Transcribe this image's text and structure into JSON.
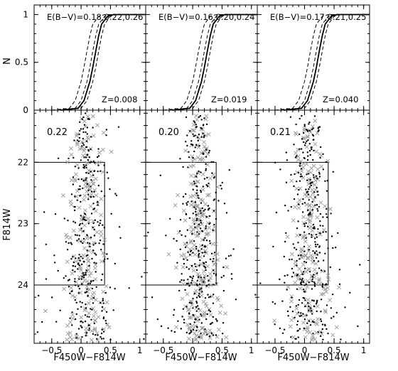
{
  "chart_data": [
    {
      "type": "line",
      "panel": "cumulative-1",
      "ylabel": "N",
      "xlim": [
        -0.8,
        1.1
      ],
      "ylim": [
        0,
        1.1
      ],
      "yticks": [
        0,
        0.5,
        1
      ],
      "ytick_labels": [
        "0",
        "0.5",
        "1"
      ],
      "annotations": [
        "E(B−V)=0.18,0.22,0.26",
        "Z=0.008"
      ],
      "series": [
        {
          "style": "dashed",
          "x": [
            -0.5,
            -0.2,
            -0.1,
            0.0,
            0.05,
            0.1,
            0.15,
            0.2,
            0.3,
            0.4,
            1.1
          ],
          "values": [
            0,
            0.02,
            0.1,
            0.3,
            0.45,
            0.62,
            0.78,
            0.9,
            0.98,
            1.0,
            1.0
          ]
        },
        {
          "style": "dashed",
          "x": [
            -0.4,
            -0.1,
            0.0,
            0.1,
            0.15,
            0.2,
            0.25,
            0.3,
            0.4,
            0.5,
            1.1
          ],
          "values": [
            0,
            0.02,
            0.1,
            0.3,
            0.45,
            0.62,
            0.78,
            0.9,
            0.98,
            1.0,
            1.0
          ]
        },
        {
          "style": "dashed",
          "x": [
            -0.3,
            0.0,
            0.1,
            0.2,
            0.25,
            0.3,
            0.35,
            0.4,
            0.5,
            0.6,
            1.1
          ],
          "values": [
            0,
            0.02,
            0.1,
            0.3,
            0.45,
            0.62,
            0.78,
            0.9,
            0.98,
            1.0,
            1.0
          ]
        },
        {
          "style": "solid",
          "x": [
            -0.35,
            -0.05,
            0.05,
            0.15,
            0.2,
            0.25,
            0.3,
            0.35,
            0.45,
            0.55,
            1.1
          ],
          "values": [
            0,
            0.02,
            0.1,
            0.3,
            0.45,
            0.62,
            0.78,
            0.9,
            0.98,
            1.0,
            1.0
          ]
        }
      ]
    },
    {
      "type": "line",
      "panel": "cumulative-2",
      "xlim": [
        -0.8,
        1.1
      ],
      "ylim": [
        0,
        1.1
      ],
      "annotations": [
        "E(B−V)=0.16,0.20,0.24",
        "Z=0.019"
      ],
      "series": [
        {
          "style": "dashed",
          "x": [
            -0.5,
            -0.2,
            -0.1,
            0.0,
            0.05,
            0.1,
            0.15,
            0.2,
            0.3,
            0.4,
            1.1
          ],
          "values": [
            0,
            0.02,
            0.1,
            0.3,
            0.45,
            0.62,
            0.78,
            0.9,
            0.98,
            1.0,
            1.0
          ]
        },
        {
          "style": "dashed",
          "x": [
            -0.4,
            -0.1,
            0.0,
            0.1,
            0.15,
            0.2,
            0.25,
            0.3,
            0.4,
            0.5,
            1.1
          ],
          "values": [
            0,
            0.02,
            0.1,
            0.3,
            0.45,
            0.62,
            0.78,
            0.9,
            0.98,
            1.0,
            1.0
          ]
        },
        {
          "style": "dashed",
          "x": [
            -0.3,
            0.0,
            0.1,
            0.2,
            0.25,
            0.3,
            0.35,
            0.4,
            0.5,
            0.6,
            1.1
          ],
          "values": [
            0,
            0.02,
            0.1,
            0.3,
            0.45,
            0.62,
            0.78,
            0.9,
            0.98,
            1.0,
            1.0
          ]
        },
        {
          "style": "solid",
          "x": [
            -0.35,
            -0.05,
            0.05,
            0.15,
            0.2,
            0.25,
            0.3,
            0.35,
            0.45,
            0.55,
            1.1
          ],
          "values": [
            0,
            0.02,
            0.1,
            0.3,
            0.45,
            0.62,
            0.78,
            0.9,
            0.98,
            1.0,
            1.0
          ]
        }
      ]
    },
    {
      "type": "line",
      "panel": "cumulative-3",
      "xlim": [
        -0.8,
        1.1
      ],
      "ylim": [
        0,
        1.1
      ],
      "annotations": [
        "E(B−V)=0.17,0.21,0.25",
        "Z=0.040"
      ],
      "series": [
        {
          "style": "dashed",
          "x": [
            -0.5,
            -0.2,
            -0.1,
            0.0,
            0.05,
            0.1,
            0.15,
            0.2,
            0.3,
            0.4,
            1.1
          ],
          "values": [
            0,
            0.02,
            0.1,
            0.3,
            0.45,
            0.62,
            0.78,
            0.9,
            0.98,
            1.0,
            1.0
          ]
        },
        {
          "style": "dashed",
          "x": [
            -0.4,
            -0.1,
            0.0,
            0.1,
            0.15,
            0.2,
            0.25,
            0.3,
            0.4,
            0.5,
            1.1
          ],
          "values": [
            0,
            0.02,
            0.1,
            0.3,
            0.45,
            0.62,
            0.78,
            0.9,
            0.98,
            1.0,
            1.0
          ]
        },
        {
          "style": "dashed",
          "x": [
            -0.3,
            0.0,
            0.1,
            0.2,
            0.25,
            0.3,
            0.35,
            0.4,
            0.5,
            0.6,
            1.1
          ],
          "values": [
            0,
            0.02,
            0.1,
            0.3,
            0.45,
            0.62,
            0.78,
            0.9,
            0.98,
            1.0,
            1.0
          ]
        },
        {
          "style": "solid",
          "x": [
            -0.35,
            -0.05,
            0.05,
            0.15,
            0.2,
            0.25,
            0.3,
            0.35,
            0.45,
            0.55,
            1.1
          ],
          "values": [
            0,
            0.02,
            0.1,
            0.3,
            0.45,
            0.62,
            0.78,
            0.9,
            0.98,
            1.0,
            1.0
          ]
        }
      ]
    },
    {
      "type": "scatter",
      "panel": "cmd-1",
      "label": "0.22",
      "xlabel": "F450W−F814W",
      "ylabel": "F814W",
      "xlim": [
        -0.8,
        1.1
      ],
      "ylim": [
        24.95,
        21.15
      ],
      "xticks": [
        -0.5,
        0,
        0.5,
        1
      ],
      "xtick_labels": [
        "−0.5",
        "0",
        "0.5",
        "1"
      ],
      "yticks": [
        22,
        23,
        24
      ],
      "ytick_labels": [
        "22",
        "23",
        "24"
      ],
      "box": {
        "color_min": -0.8,
        "color_max": 0.4,
        "mag_bright": 22,
        "mag_faint": 24
      },
      "distribution": {
        "color_center": 0.1,
        "color_sigma": 0.18,
        "mag_range": [
          21.2,
          24.9
        ],
        "n_dots": 330,
        "n_crosses": 190
      }
    },
    {
      "type": "scatter",
      "panel": "cmd-2",
      "label": "0.20",
      "xlabel": "F450W−F814W",
      "xlim": [
        -0.8,
        1.1
      ],
      "ylim": [
        24.95,
        21.15
      ],
      "xticks": [
        -0.5,
        0,
        0.5,
        1
      ],
      "xtick_labels": [
        "−0.5",
        "0",
        "0.5",
        "1"
      ],
      "box": {
        "color_min": -0.8,
        "color_max": 0.4,
        "mag_bright": 22,
        "mag_faint": 24
      },
      "distribution": {
        "color_center": 0.12,
        "color_sigma": 0.18,
        "mag_range": [
          21.2,
          24.9
        ],
        "n_dots": 330,
        "n_crosses": 230
      }
    },
    {
      "type": "scatter",
      "panel": "cmd-3",
      "label": "0.21",
      "xlabel": "F450W−F814W",
      "xlim": [
        -0.8,
        1.1
      ],
      "ylim": [
        24.95,
        21.15
      ],
      "xticks": [
        -0.5,
        0,
        0.5,
        1
      ],
      "xtick_labels": [
        "−0.5",
        "0",
        "0.5",
        "1"
      ],
      "box": {
        "color_min": -0.8,
        "color_max": 0.4,
        "mag_bright": 22,
        "mag_faint": 24
      },
      "distribution": {
        "color_center": 0.08,
        "color_sigma": 0.18,
        "mag_range": [
          21.2,
          24.9
        ],
        "n_dots": 340,
        "n_crosses": 200
      }
    }
  ]
}
